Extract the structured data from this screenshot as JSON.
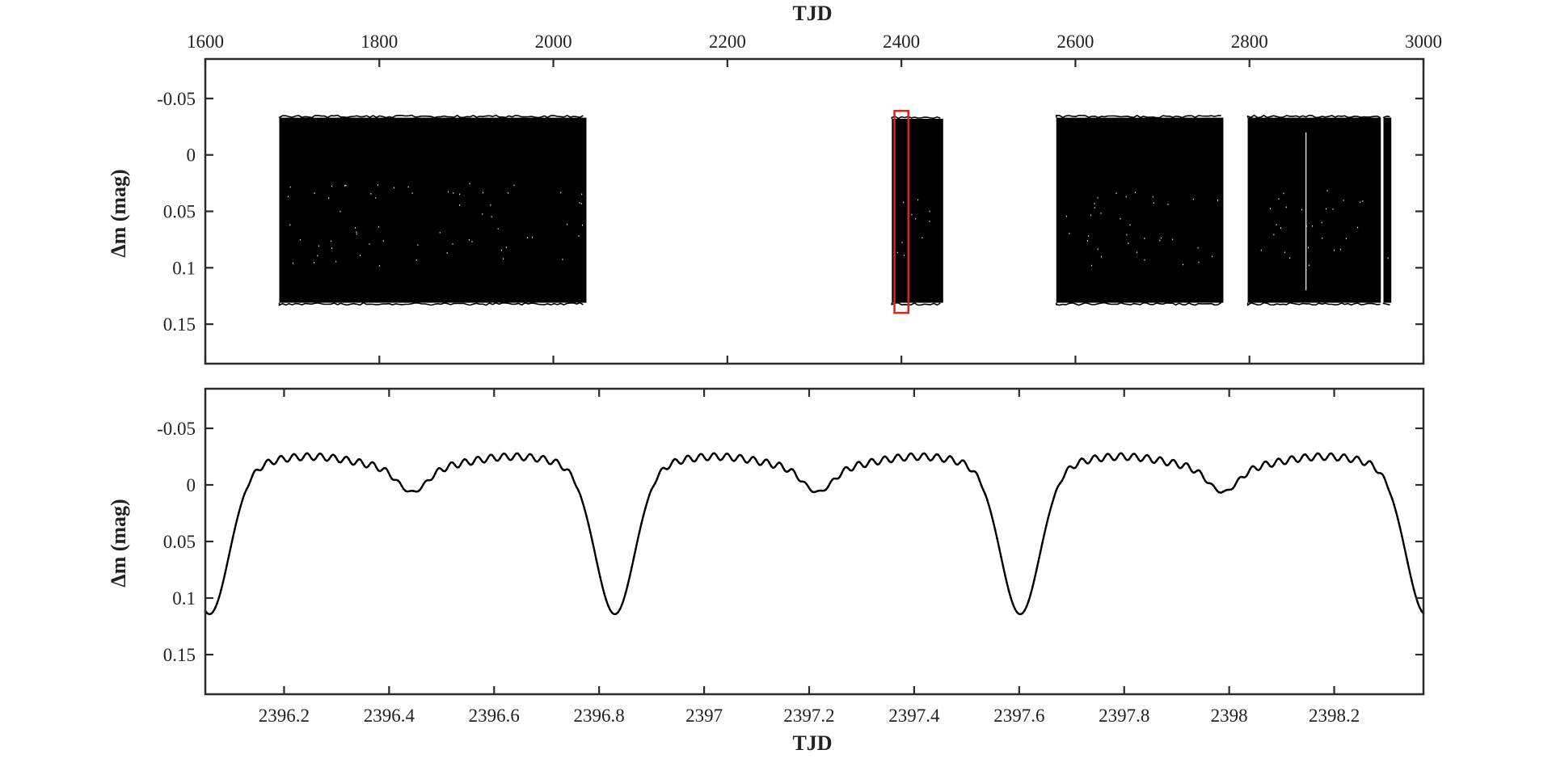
{
  "chart_data": [
    {
      "type": "scatter",
      "panel": "top",
      "xlabel": "TJD",
      "ylabel": "Δm (mag)",
      "xlim": [
        1600,
        3000
      ],
      "ylim": [
        -0.085,
        0.185
      ],
      "y_inverted": true,
      "x_axis_position": "top",
      "x_ticks": [
        1600,
        1800,
        2000,
        2200,
        2400,
        2600,
        2800,
        3000
      ],
      "x_tick_labels": [
        "1600",
        "1800",
        "2000",
        "2200",
        "2400",
        "2600",
        "2800",
        "3000"
      ],
      "y_ticks": [
        -0.05,
        0,
        0.05,
        0.1,
        0.15
      ],
      "y_tick_labels": [
        "-0.05",
        "0",
        "0.05",
        "0.1",
        "0.15"
      ],
      "grid": false,
      "observation_segments": [
        {
          "x_start": 1685,
          "x_end": 2038,
          "y_top": -0.033,
          "y_bottom": 0.131
        },
        {
          "x_start": 2389,
          "x_end": 2448,
          "y_top": -0.032,
          "y_bottom": 0.131
        },
        {
          "x_start": 2578,
          "x_end": 2770,
          "y_top": -0.033,
          "y_bottom": 0.131
        },
        {
          "x_start": 2798,
          "x_end": 2951,
          "y_top": -0.033,
          "y_bottom": 0.131
        },
        {
          "x_start": 2954,
          "x_end": 2963,
          "y_top": -0.033,
          "y_bottom": 0.131
        }
      ],
      "highlight_box": {
        "x_start": 2392,
        "x_end": 2408,
        "y_top": -0.039,
        "y_bottom": 0.14,
        "color": "#e0201b"
      },
      "marker_color": "#000000"
    },
    {
      "type": "line",
      "panel": "bottom",
      "xlabel": "TJD",
      "ylabel": "Δm (mag)",
      "xlim": [
        2396.05,
        2398.37
      ],
      "ylim": [
        -0.085,
        0.185
      ],
      "y_inverted": true,
      "x_axis_position": "bottom",
      "x_ticks": [
        2396.2,
        2396.4,
        2396.6,
        2396.8,
        2397,
        2397.2,
        2397.4,
        2397.6,
        2397.8,
        2398,
        2398.2
      ],
      "x_tick_labels": [
        "2396.2",
        "2396.4",
        "2396.6",
        "2396.8",
        "2397",
        "2397.2",
        "2397.4",
        "2397.6",
        "2397.8",
        "2398",
        "2398.2"
      ],
      "y_ticks": [
        -0.05,
        0,
        0.05,
        0.1,
        0.15
      ],
      "y_tick_labels": [
        "-0.05",
        "0",
        "0.05",
        "0.1",
        "0.15"
      ],
      "grid": false,
      "orbital_period": 0.772,
      "primary_minima": [
        2396.058,
        2396.83,
        2397.602,
        2398.374
      ],
      "secondary_minima": [
        2396.444,
        2397.216,
        2397.988
      ],
      "primary_depth": 0.128,
      "secondary_depth": 0.02,
      "maximum_level": -0.025,
      "pulsation_amplitude": 0.003,
      "pulsation_period": 0.025,
      "marker_color": "#000000"
    }
  ]
}
